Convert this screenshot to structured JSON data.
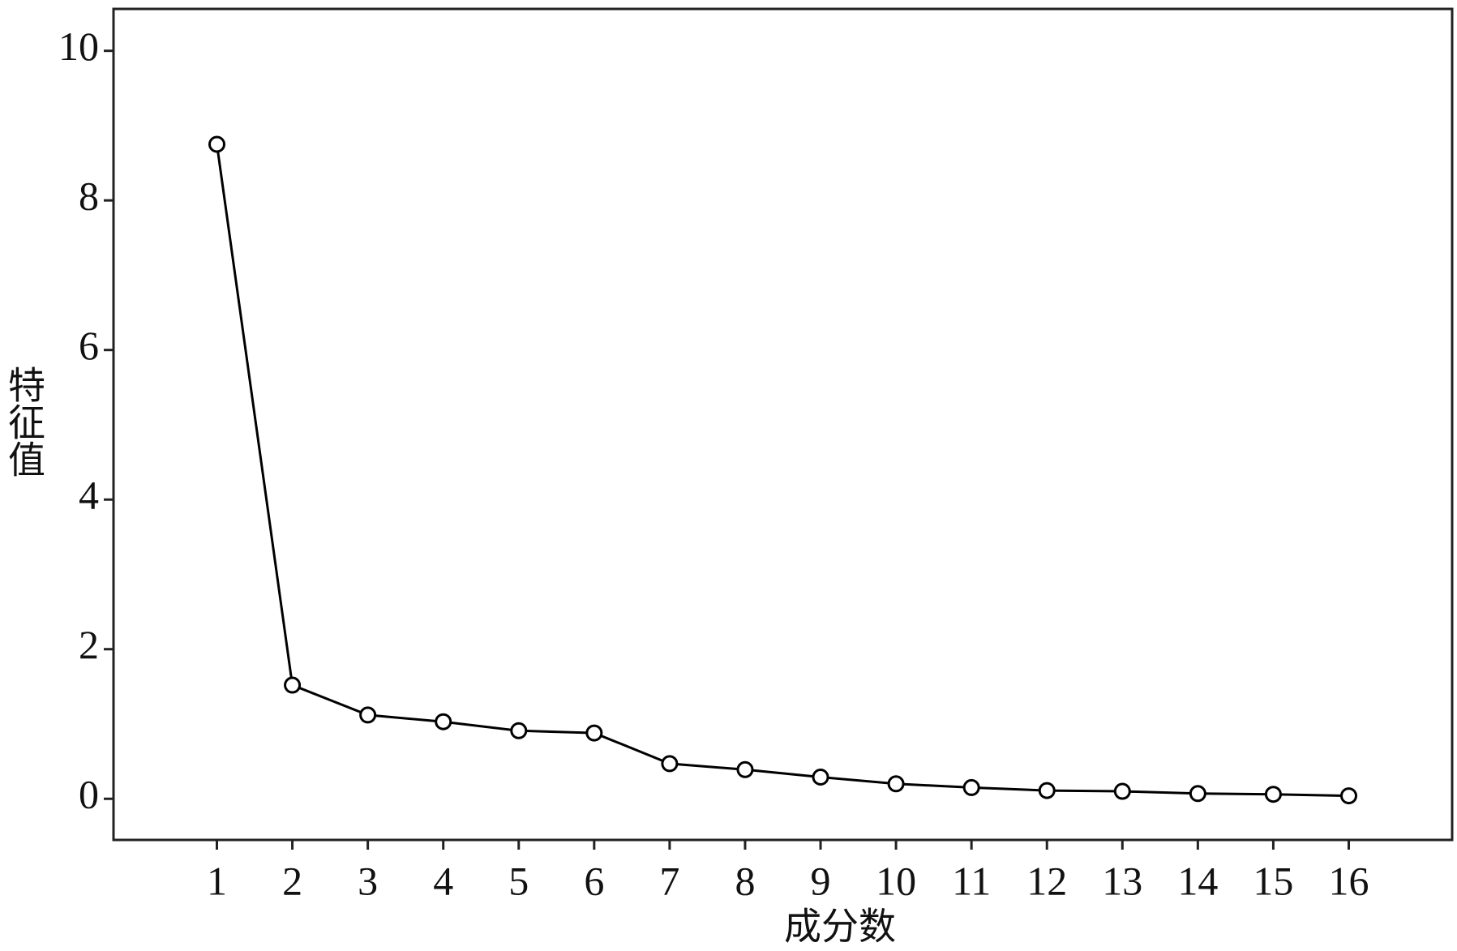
{
  "chart_data": {
    "type": "line",
    "x_label": "成分数",
    "y_label": "特征值",
    "x": [
      1,
      2,
      3,
      4,
      5,
      6,
      7,
      8,
      9,
      10,
      11,
      12,
      13,
      14,
      15,
      16
    ],
    "series": [
      {
        "color": "#000000",
        "values": [
          8.75,
          1.52,
          1.12,
          1.03,
          0.91,
          0.88,
          0.47,
          0.39,
          0.29,
          0.2,
          0.15,
          0.11,
          0.1,
          0.07,
          0.06,
          0.04
        ]
      }
    ],
    "xlim": [
      -0.37,
      17.37
    ],
    "xticks": [
      1,
      2,
      3,
      4,
      5,
      6,
      7,
      8,
      9,
      10,
      11,
      12,
      13,
      14,
      15,
      16
    ],
    "ylim": [
      -0.55,
      10.56
    ],
    "yticks": [
      0,
      2,
      4,
      6,
      8,
      10
    ],
    "grid": false,
    "markers": "open-circle"
  }
}
